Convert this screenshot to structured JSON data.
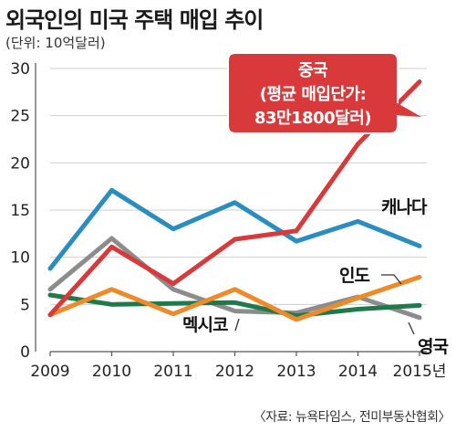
{
  "title": "외국인의 미국 주택 매입 추이",
  "unit": "(단위: 10억달러)",
  "source": "〈자료: 뉴욕타임스, 전미부동산협회〉",
  "colors": {
    "중국": "#d9393a",
    "캐나다": "#2a8dbf",
    "인도": "#ee8a2a",
    "멕시코": "#1e7a4b",
    "영국": "#8c8c8c"
  },
  "chart_data": {
    "type": "line",
    "x": [
      "2009",
      "2010",
      "2011",
      "2012",
      "2013",
      "2014",
      "2015년"
    ],
    "ylim": [
      0,
      30
    ],
    "yticks": [
      "0",
      "5",
      "10",
      "15",
      "20",
      "25",
      "30"
    ],
    "grid": true,
    "series": [
      {
        "name": "중국",
        "values": [
          3.9,
          11.1,
          7.2,
          11.9,
          12.8,
          22.0,
          28.6
        ]
      },
      {
        "name": "캐나다",
        "values": [
          8.8,
          17.1,
          13.0,
          15.8,
          11.7,
          13.8,
          11.2
        ]
      },
      {
        "name": "인도",
        "values": [
          3.9,
          6.6,
          4.0,
          6.6,
          3.4,
          5.7,
          7.9
        ]
      },
      {
        "name": "멕시코",
        "values": [
          6.0,
          5.0,
          5.1,
          5.2,
          3.8,
          4.5,
          4.9
        ]
      },
      {
        "name": "영국",
        "values": [
          6.6,
          12.0,
          6.6,
          4.3,
          4.1,
          5.8,
          3.6
        ]
      }
    ],
    "callout": [
      "중국",
      "(평균 매입단가:",
      "83만1800달러)"
    ]
  }
}
